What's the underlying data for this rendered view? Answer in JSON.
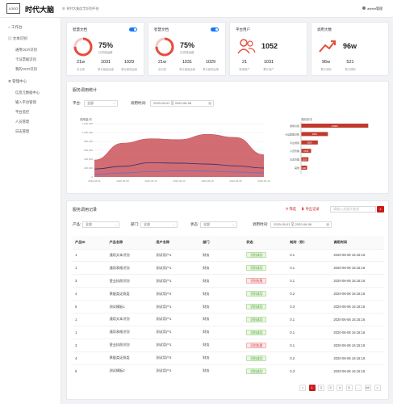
{
  "header": {
    "logo": "LOGO",
    "brand": "时代大脑",
    "breadcrumb": "时代大脑文字识别平台",
    "user": "admin管理"
  },
  "sidebar": {
    "items": [
      {
        "label": "工作台"
      },
      {
        "label": "文本识别",
        "children": [
          "通用OCR识别",
          "卡证票据识别",
          "我的OCR识别"
        ]
      },
      {
        "label": "管理中心",
        "children": [
          "信息元数据中心",
          "输入平台管理",
          "平台监控",
          "人员管理",
          "日志管理"
        ]
      }
    ]
  },
  "cards": [
    {
      "title": "智慧文档",
      "percent": "75%",
      "sub": "已完成运维",
      "stats": [
        {
          "v": "21w",
          "l": "总记录"
        },
        {
          "v": "1031",
          "l": "单日最高运维"
        },
        {
          "v": "1029",
          "l": "单日最低运维"
        }
      ],
      "icon": "ring-chart-icon",
      "toggle": true
    },
    {
      "title": "智慧文档",
      "percent": "75%",
      "sub": "已完成运维",
      "stats": [
        {
          "v": "21w",
          "l": "总记录"
        },
        {
          "v": "1031",
          "l": "单日最高运维"
        },
        {
          "v": "1029",
          "l": "单日最低运维"
        }
      ],
      "icon": "ring-chart-icon",
      "toggle": true
    },
    {
      "title": "平台用户",
      "percent": "1052",
      "sub": "",
      "stats": [
        {
          "v": "21",
          "l": "新增用户"
        },
        {
          "v": "1031",
          "l": "累计用户"
        }
      ],
      "icon": "users-icon",
      "toggle": false
    },
    {
      "title": "调用大数",
      "percent": "96w",
      "sub": "",
      "stats": [
        {
          "v": "96w",
          "l": "累计调用"
        },
        {
          "v": "521",
          "l": "单日调用"
        }
      ],
      "icon": "trend-up-icon",
      "toggle": false
    }
  ],
  "stats_panel": {
    "title": "服务调用统计",
    "platform_label": "平台:",
    "platform_value": "全部",
    "time_label": "调用时间:",
    "date_from": "2020-05-01",
    "date_sep": "至",
    "date_to": "2020-06-06"
  },
  "chart_data": [
    {
      "type": "area",
      "title": "",
      "y_unit": "调用量/次",
      "x": [
        "2020-05-01",
        "2020-05-08",
        "2020-05-15",
        "2020-05-22",
        "2020-05-29",
        "2020-06-05",
        "2020-06-12"
      ],
      "ylim": [
        0,
        1200000
      ],
      "yticks": [
        "0",
        "200,000",
        "400,000",
        "600,000",
        "800,000",
        "1,000,000",
        "1,200,000"
      ],
      "series": [
        {
          "name": "",
          "values": [
            380000,
            760000,
            860000,
            840000,
            960000,
            890000,
            500000
          ],
          "color": "#c9545a"
        },
        {
          "name": "",
          "values": [
            180000,
            240000,
            320000,
            310000,
            290000,
            250000,
            200000
          ],
          "color": "#2b2b73"
        },
        {
          "name": "",
          "values": [
            60000,
            90000,
            120000,
            140000,
            130000,
            110000,
            90000
          ],
          "color": "#5a6fd6"
        }
      ]
    },
    {
      "type": "bar",
      "title": "",
      "y_unit": "调用量/次",
      "categories": [
        "通用识别",
        "卡证票据识别",
        "平台调用",
        "人员管理",
        "日志管理",
        "其他"
      ],
      "values": [
        10000,
        4000,
        2500,
        1500,
        1100,
        900
      ],
      "xlim": [
        0,
        12000
      ],
      "bar_labels": [
        "10000",
        "4000",
        "2500",
        "1500",
        "1100",
        "900"
      ],
      "color": "#c0392b"
    }
  ],
  "records_panel": {
    "title": "服务调用记录",
    "filter_label": "筛选",
    "export_label": "导出记录",
    "search_placeholder": "请输入关键字查询",
    "filters": [
      {
        "label": "产品:",
        "value": "全部"
      },
      {
        "label": "部门:",
        "value": "全部"
      },
      {
        "label": "状态:",
        "value": "全部"
      },
      {
        "label": "调用时间:",
        "value": "2020-05-01 至 2020-06-06"
      }
    ],
    "columns": [
      "产品ID",
      "产品名称",
      "用户名称",
      "部门",
      "状态",
      "耗时（秒）",
      "调用时间"
    ],
    "rows": [
      [
        "1",
        "通用文本识别",
        "测试用户1",
        "财务",
        "识别成功",
        "0.1",
        "2020-06-06 16:16:16"
      ],
      [
        "1",
        "通用表格识别",
        "测试用户1",
        "财务",
        "识别成功",
        "0.1",
        "2020-06-06 16:16:16"
      ],
      [
        "3",
        "营业执照识别",
        "测试用户1",
        "财务",
        "识别失败",
        "0.1",
        "2020-06-06 16:16:16"
      ],
      [
        "4",
        "票据类证照类",
        "测试用户2",
        "财务",
        "识别成功",
        "0.2",
        "2020-06-06 16:16:16"
      ],
      [
        "5",
        "测试模板1",
        "测试用户1",
        "财务",
        "识别成功",
        "0.3",
        "2020-06-06 16:16:16"
      ],
      [
        "1",
        "通用文本识别",
        "测试用户1",
        "财务",
        "识别成功",
        "0.1",
        "2020-06-06 16:16:16"
      ],
      [
        "1",
        "通用表格识别",
        "测试用户1",
        "财务",
        "识别成功",
        "0.1",
        "2020-06-06 16:16:16"
      ],
      [
        "3",
        "营业执照识别",
        "测试用户1",
        "财务",
        "识别失败",
        "0.1",
        "2020-06-06 16:16:16"
      ],
      [
        "4",
        "票据类证照类",
        "测试用户2",
        "财务",
        "识别成功",
        "0.2",
        "2020-06-06 16:16:16"
      ],
      [
        "5",
        "测试模板2",
        "测试用户1",
        "财务",
        "识别成功",
        "0.3",
        "2020-06-06 16:16:16"
      ]
    ],
    "pagination": [
      "<",
      "1",
      "2",
      "3",
      "4",
      "5",
      "…",
      "66",
      ">"
    ],
    "current_page": "1"
  },
  "colors": {
    "accent": "#c81e1e",
    "toggle": "#1677ff",
    "ring": "#e74c3c"
  }
}
